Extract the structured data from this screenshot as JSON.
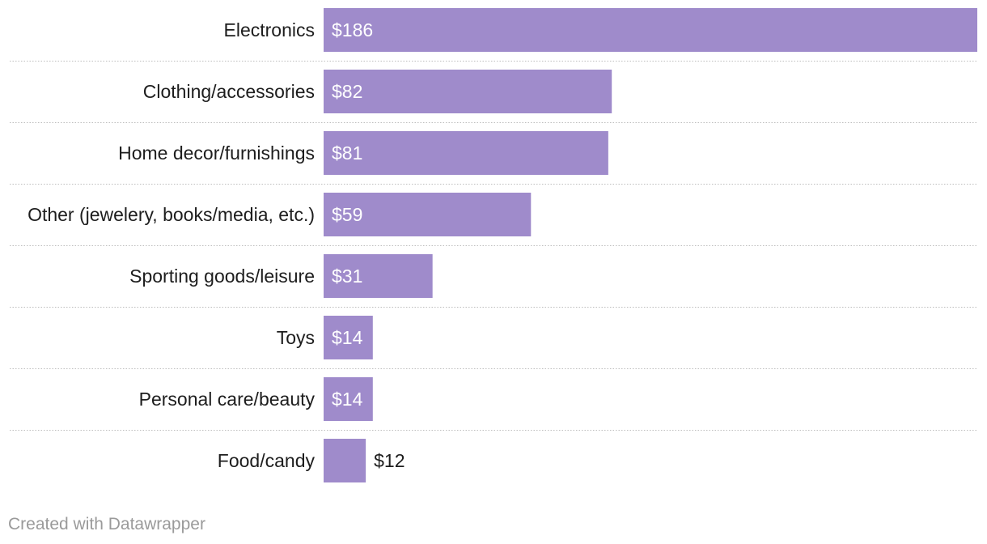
{
  "chart_data": {
    "type": "bar",
    "orientation": "horizontal",
    "categories": [
      "Electronics",
      "Clothing/accessories",
      "Home decor/furnishings",
      "Other (jewelery, books/media, etc.)",
      "Sporting goods/leisure",
      "Toys",
      "Personal care/beauty",
      "Food/candy"
    ],
    "values": [
      186,
      82,
      81,
      59,
      31,
      14,
      14,
      12
    ],
    "value_labels": [
      "$186",
      "$82",
      "$81",
      "$59",
      "$31",
      "$14",
      "$14",
      "$12"
    ],
    "title": "",
    "xlabel": "",
    "ylabel": "",
    "xlim": [
      0,
      186
    ],
    "grid": false,
    "color": "#9f8bcb"
  },
  "footer": {
    "credit": "Created with Datawrapper"
  }
}
